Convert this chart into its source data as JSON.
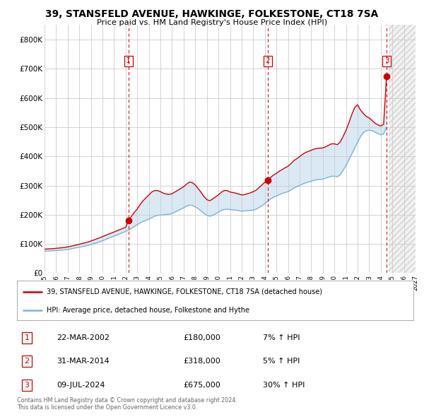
{
  "title": "39, STANSFELD AVENUE, HAWKINGE, FOLKESTONE, CT18 7SA",
  "subtitle": "Price paid vs. HM Land Registry's House Price Index (HPI)",
  "background_color": "#ffffff",
  "plot_bg_color": "#ffffff",
  "fill_color": "#c5d9ee",
  "hpi_color": "#7ab4d8",
  "price_color": "#cc0000",
  "ylabel": "",
  "ylim": [
    0,
    850000
  ],
  "yticks": [
    0,
    100000,
    200000,
    300000,
    400000,
    500000,
    600000,
    700000,
    800000
  ],
  "ytick_labels": [
    "£0",
    "£100K",
    "£200K",
    "£300K",
    "£400K",
    "£500K",
    "£600K",
    "£700K",
    "£800K"
  ],
  "legend_line1": "39, STANSFELD AVENUE, HAWKINGE, FOLKESTONE, CT18 7SA (detached house)",
  "legend_line2": "HPI: Average price, detached house, Folkestone and Hythe",
  "footer1": "Contains HM Land Registry data © Crown copyright and database right 2024.",
  "footer2": "This data is licensed under the Open Government Licence v3.0.",
  "transactions": [
    {
      "num": 1,
      "date": "22-MAR-2002",
      "price": 180000,
      "pct": "7%",
      "dir": "↑",
      "year_x": 2002.23
    },
    {
      "num": 2,
      "date": "31-MAR-2014",
      "price": 318000,
      "pct": "5%",
      "dir": "↑",
      "year_x": 2014.25
    },
    {
      "num": 3,
      "date": "09-JUL-2024",
      "price": 675000,
      "pct": "30%",
      "dir": "↑",
      "year_x": 2024.52
    }
  ],
  "hpi_data": [
    [
      1995.0,
      75000
    ],
    [
      1995.25,
      76000
    ],
    [
      1995.5,
      76500
    ],
    [
      1995.75,
      77000
    ],
    [
      1996.0,
      77500
    ],
    [
      1996.25,
      78000
    ],
    [
      1996.5,
      79000
    ],
    [
      1996.75,
      80000
    ],
    [
      1997.0,
      81000
    ],
    [
      1997.25,
      83000
    ],
    [
      1997.5,
      85000
    ],
    [
      1997.75,
      87000
    ],
    [
      1998.0,
      89000
    ],
    [
      1998.25,
      91000
    ],
    [
      1998.5,
      93000
    ],
    [
      1998.75,
      95000
    ],
    [
      1999.0,
      98000
    ],
    [
      1999.25,
      101000
    ],
    [
      1999.5,
      104000
    ],
    [
      1999.75,
      107000
    ],
    [
      2000.0,
      111000
    ],
    [
      2000.25,
      115000
    ],
    [
      2000.5,
      119000
    ],
    [
      2000.75,
      123000
    ],
    [
      2001.0,
      127000
    ],
    [
      2001.25,
      131000
    ],
    [
      2001.5,
      135000
    ],
    [
      2001.75,
      139000
    ],
    [
      2002.0,
      143000
    ],
    [
      2002.25,
      148000
    ],
    [
      2002.5,
      154000
    ],
    [
      2002.75,
      160000
    ],
    [
      2003.0,
      166000
    ],
    [
      2003.25,
      172000
    ],
    [
      2003.5,
      177000
    ],
    [
      2003.75,
      181000
    ],
    [
      2004.0,
      185000
    ],
    [
      2004.25,
      190000
    ],
    [
      2004.5,
      195000
    ],
    [
      2004.75,
      198000
    ],
    [
      2005.0,
      199000
    ],
    [
      2005.25,
      200000
    ],
    [
      2005.5,
      201000
    ],
    [
      2005.75,
      202000
    ],
    [
      2006.0,
      204000
    ],
    [
      2006.25,
      209000
    ],
    [
      2006.5,
      214000
    ],
    [
      2006.75,
      219000
    ],
    [
      2007.0,
      224000
    ],
    [
      2007.25,
      230000
    ],
    [
      2007.5,
      233000
    ],
    [
      2007.75,
      232000
    ],
    [
      2008.0,
      227000
    ],
    [
      2008.25,
      221000
    ],
    [
      2008.5,
      213000
    ],
    [
      2008.75,
      205000
    ],
    [
      2009.0,
      198000
    ],
    [
      2009.25,
      195000
    ],
    [
      2009.5,
      198000
    ],
    [
      2009.75,
      203000
    ],
    [
      2010.0,
      209000
    ],
    [
      2010.25,
      215000
    ],
    [
      2010.5,
      218000
    ],
    [
      2010.75,
      219000
    ],
    [
      2011.0,
      218000
    ],
    [
      2011.25,
      217000
    ],
    [
      2011.5,
      216000
    ],
    [
      2011.75,
      214000
    ],
    [
      2012.0,
      212000
    ],
    [
      2012.25,
      213000
    ],
    [
      2012.5,
      214000
    ],
    [
      2012.75,
      215000
    ],
    [
      2013.0,
      216000
    ],
    [
      2013.25,
      219000
    ],
    [
      2013.5,
      225000
    ],
    [
      2013.75,
      231000
    ],
    [
      2014.0,
      238000
    ],
    [
      2014.25,
      246000
    ],
    [
      2014.5,
      254000
    ],
    [
      2014.75,
      260000
    ],
    [
      2015.0,
      264000
    ],
    [
      2015.25,
      269000
    ],
    [
      2015.5,
      273000
    ],
    [
      2015.75,
      276000
    ],
    [
      2016.0,
      279000
    ],
    [
      2016.25,
      285000
    ],
    [
      2016.5,
      291000
    ],
    [
      2016.75,
      296000
    ],
    [
      2017.0,
      300000
    ],
    [
      2017.25,
      305000
    ],
    [
      2017.5,
      309000
    ],
    [
      2017.75,
      312000
    ],
    [
      2018.0,
      315000
    ],
    [
      2018.25,
      318000
    ],
    [
      2018.5,
      320000
    ],
    [
      2018.75,
      321000
    ],
    [
      2019.0,
      322000
    ],
    [
      2019.25,
      325000
    ],
    [
      2019.5,
      329000
    ],
    [
      2019.75,
      332000
    ],
    [
      2020.0,
      332000
    ],
    [
      2020.25,
      330000
    ],
    [
      2020.5,
      337000
    ],
    [
      2020.75,
      352000
    ],
    [
      2021.0,
      368000
    ],
    [
      2021.25,
      388000
    ],
    [
      2021.5,
      408000
    ],
    [
      2021.75,
      428000
    ],
    [
      2022.0,
      448000
    ],
    [
      2022.25,
      468000
    ],
    [
      2022.5,
      481000
    ],
    [
      2022.75,
      488000
    ],
    [
      2023.0,
      490000
    ],
    [
      2023.25,
      488000
    ],
    [
      2023.5,
      483000
    ],
    [
      2023.75,
      478000
    ],
    [
      2024.0,
      474000
    ],
    [
      2024.25,
      477000
    ],
    [
      2024.5,
      500000
    ]
  ],
  "price_data": [
    [
      1995.0,
      82000
    ],
    [
      1995.25,
      83000
    ],
    [
      1995.5,
      83500
    ],
    [
      1995.75,
      84000
    ],
    [
      1996.0,
      85000
    ],
    [
      1996.25,
      86000
    ],
    [
      1996.5,
      87000
    ],
    [
      1996.75,
      88000
    ],
    [
      1997.0,
      90000
    ],
    [
      1997.25,
      92000
    ],
    [
      1997.5,
      94000
    ],
    [
      1997.75,
      96500
    ],
    [
      1998.0,
      99000
    ],
    [
      1998.25,
      101500
    ],
    [
      1998.5,
      104000
    ],
    [
      1998.75,
      106500
    ],
    [
      1999.0,
      110000
    ],
    [
      1999.25,
      113500
    ],
    [
      1999.5,
      117500
    ],
    [
      1999.75,
      121000
    ],
    [
      2000.0,
      125000
    ],
    [
      2000.25,
      129000
    ],
    [
      2000.5,
      133000
    ],
    [
      2000.75,
      137000
    ],
    [
      2001.0,
      141000
    ],
    [
      2001.25,
      145000
    ],
    [
      2001.5,
      149000
    ],
    [
      2001.75,
      153000
    ],
    [
      2002.0,
      157000
    ],
    [
      2002.25,
      180000
    ],
    [
      2002.5,
      195000
    ],
    [
      2002.75,
      208000
    ],
    [
      2003.0,
      220000
    ],
    [
      2003.25,
      235000
    ],
    [
      2003.5,
      248000
    ],
    [
      2003.75,
      258000
    ],
    [
      2004.0,
      268000
    ],
    [
      2004.25,
      278000
    ],
    [
      2004.5,
      283000
    ],
    [
      2004.75,
      283000
    ],
    [
      2005.0,
      279000
    ],
    [
      2005.25,
      274000
    ],
    [
      2005.5,
      271000
    ],
    [
      2005.75,
      270000
    ],
    [
      2006.0,
      272000
    ],
    [
      2006.25,
      278000
    ],
    [
      2006.5,
      284000
    ],
    [
      2006.75,
      290000
    ],
    [
      2007.0,
      296000
    ],
    [
      2007.25,
      305000
    ],
    [
      2007.5,
      312000
    ],
    [
      2007.75,
      310000
    ],
    [
      2008.0,
      302000
    ],
    [
      2008.25,
      290000
    ],
    [
      2008.5,
      277000
    ],
    [
      2008.75,
      263000
    ],
    [
      2009.0,
      252000
    ],
    [
      2009.25,
      248000
    ],
    [
      2009.5,
      254000
    ],
    [
      2009.75,
      261000
    ],
    [
      2010.0,
      268000
    ],
    [
      2010.25,
      277000
    ],
    [
      2010.5,
      283000
    ],
    [
      2010.75,
      283000
    ],
    [
      2011.0,
      278000
    ],
    [
      2011.25,
      276000
    ],
    [
      2011.5,
      274000
    ],
    [
      2011.75,
      271000
    ],
    [
      2012.0,
      268000
    ],
    [
      2012.25,
      269000
    ],
    [
      2012.5,
      272000
    ],
    [
      2012.75,
      275000
    ],
    [
      2013.0,
      279000
    ],
    [
      2013.25,
      284000
    ],
    [
      2013.5,
      293000
    ],
    [
      2013.75,
      302000
    ],
    [
      2014.0,
      311000
    ],
    [
      2014.25,
      318000
    ],
    [
      2014.5,
      328000
    ],
    [
      2014.75,
      336000
    ],
    [
      2015.0,
      342000
    ],
    [
      2015.25,
      349000
    ],
    [
      2015.5,
      355000
    ],
    [
      2015.75,
      361000
    ],
    [
      2016.0,
      366000
    ],
    [
      2016.25,
      375000
    ],
    [
      2016.5,
      385000
    ],
    [
      2016.75,
      392000
    ],
    [
      2017.0,
      399000
    ],
    [
      2017.25,
      407000
    ],
    [
      2017.5,
      413000
    ],
    [
      2017.75,
      417000
    ],
    [
      2018.0,
      421000
    ],
    [
      2018.25,
      425000
    ],
    [
      2018.5,
      427000
    ],
    [
      2018.75,
      428000
    ],
    [
      2019.0,
      429000
    ],
    [
      2019.25,
      433000
    ],
    [
      2019.5,
      438000
    ],
    [
      2019.75,
      443000
    ],
    [
      2020.0,
      443000
    ],
    [
      2020.25,
      440000
    ],
    [
      2020.5,
      449000
    ],
    [
      2020.75,
      468000
    ],
    [
      2021.0,
      489000
    ],
    [
      2021.25,
      515000
    ],
    [
      2021.5,
      543000
    ],
    [
      2021.75,
      567000
    ],
    [
      2022.0,
      577000
    ],
    [
      2022.25,
      559000
    ],
    [
      2022.5,
      547000
    ],
    [
      2022.75,
      537000
    ],
    [
      2023.0,
      532000
    ],
    [
      2023.25,
      523000
    ],
    [
      2023.5,
      514000
    ],
    [
      2023.75,
      508000
    ],
    [
      2024.0,
      504000
    ],
    [
      2024.25,
      510000
    ],
    [
      2024.5,
      675000
    ]
  ],
  "xlim": [
    1995.0,
    2027.0
  ],
  "xticks": [
    1995,
    1996,
    1997,
    1998,
    1999,
    2000,
    2001,
    2002,
    2003,
    2004,
    2005,
    2006,
    2007,
    2008,
    2009,
    2010,
    2011,
    2012,
    2013,
    2014,
    2015,
    2016,
    2017,
    2018,
    2019,
    2020,
    2021,
    2022,
    2023,
    2024,
    2025,
    2026,
    2027
  ]
}
